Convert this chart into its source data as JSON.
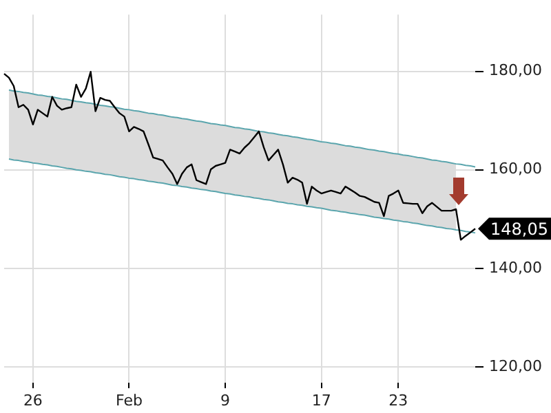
{
  "chart_data": {
    "type": "line",
    "ylim": [
      116.8,
      191.5
    ],
    "categories": [
      null,
      null,
      null,
      null,
      null,
      null,
      "26",
      null,
      null,
      null,
      null,
      null,
      null,
      null,
      null,
      null,
      null,
      null,
      null,
      null,
      null,
      null,
      null,
      null,
      null,
      null,
      "Feb",
      null,
      null,
      null,
      null,
      null,
      null,
      null,
      null,
      null,
      null,
      null,
      null,
      null,
      null,
      null,
      null,
      null,
      null,
      null,
      "9",
      null,
      null,
      null,
      null,
      null,
      null,
      null,
      null,
      null,
      null,
      null,
      null,
      null,
      null,
      null,
      null,
      null,
      null,
      null,
      "17",
      null,
      null,
      null,
      null,
      null,
      null,
      null,
      null,
      null,
      null,
      null,
      null,
      null,
      null,
      null,
      "23",
      null,
      null,
      null,
      null,
      null,
      null,
      null,
      null,
      null,
      null,
      null,
      null,
      null,
      null,
      null,
      null
    ],
    "yticks": [
      {
        "value": 120,
        "label": "120,00"
      },
      {
        "value": 140,
        "label": "140,00"
      },
      {
        "value": 160,
        "label": "160,00"
      },
      {
        "value": 180,
        "label": "180,00"
      }
    ],
    "grid": true,
    "legend": false,
    "marker": "none",
    "line_style": "solid",
    "series": [
      {
        "color": "#5aa5ad",
        "values": [
          null,
          176.2,
          176.0,
          175.9,
          175.7,
          175.6,
          175.4,
          175.2,
          175.1,
          174.9,
          174.8,
          174.6,
          174.4,
          174.3,
          174.1,
          173.9,
          173.8,
          173.6,
          173.5,
          173.3,
          173.1,
          173.0,
          172.8,
          172.7,
          172.5,
          172.3,
          172.2,
          172.0,
          171.9,
          171.7,
          171.5,
          171.4,
          171.2,
          171.1,
          170.9,
          170.7,
          170.6,
          170.4,
          170.3,
          170.1,
          169.9,
          169.8,
          169.6,
          169.4,
          169.3,
          169.1,
          169.0,
          168.8,
          168.6,
          168.5,
          168.3,
          168.2,
          168.0,
          167.8,
          167.7,
          167.5,
          167.4,
          167.2,
          167.0,
          166.9,
          166.7,
          166.6,
          166.4,
          166.2,
          166.1,
          165.9,
          165.7,
          165.6,
          165.4,
          165.3,
          165.1,
          164.9,
          164.8,
          164.6,
          164.5,
          164.3,
          164.1,
          164.0,
          163.8,
          163.7,
          163.5,
          163.3,
          163.2,
          163.0,
          162.9,
          162.7,
          162.5,
          162.4,
          162.2,
          162.0,
          161.9,
          161.7,
          161.6,
          161.4,
          161.2,
          161.1,
          160.9,
          160.8,
          160.6
        ]
      },
      {
        "color": "#5aa5ad",
        "values": [
          null,
          162.2,
          162.0,
          161.9,
          161.7,
          161.6,
          161.4,
          161.3,
          161.1,
          161.0,
          160.8,
          160.7,
          160.5,
          160.3,
          160.2,
          160.0,
          159.9,
          159.7,
          159.6,
          159.4,
          159.3,
          159.1,
          159.0,
          158.8,
          158.6,
          158.5,
          158.3,
          158.2,
          158.0,
          157.9,
          157.7,
          157.6,
          157.4,
          157.3,
          157.1,
          156.9,
          156.8,
          156.6,
          156.5,
          156.3,
          156.2,
          156.0,
          155.9,
          155.7,
          155.6,
          155.4,
          155.2,
          155.1,
          154.9,
          154.8,
          154.6,
          154.5,
          154.3,
          154.2,
          154.0,
          153.9,
          153.7,
          153.5,
          153.4,
          153.2,
          153.1,
          152.9,
          152.8,
          152.6,
          152.5,
          152.3,
          152.2,
          152.0,
          151.8,
          151.7,
          151.5,
          151.4,
          151.2,
          151.1,
          150.9,
          150.8,
          150.6,
          150.4,
          150.3,
          150.1,
          150.0,
          149.8,
          149.7,
          149.5,
          149.4,
          149.2,
          149.1,
          148.9,
          148.7,
          148.6,
          148.4,
          148.3,
          148.1,
          148.0,
          147.8,
          147.7,
          147.5,
          147.4,
          147.2
        ]
      },
      {
        "color": "#000000",
        "values": [
          179.5,
          178.7,
          177.0,
          172.7,
          173.2,
          172.2,
          169.2,
          172.2,
          171.5,
          170.8,
          174.8,
          173.0,
          172.2,
          172.5,
          172.7,
          177.3,
          174.8,
          176.5,
          179.9,
          171.9,
          174.6,
          174.2,
          174.0,
          172.7,
          171.5,
          170.8,
          167.8,
          168.7,
          168.3,
          167.8,
          165.2,
          162.5,
          162.2,
          161.9,
          160.5,
          159.2,
          157.1,
          159.2,
          160.5,
          161.1,
          157.9,
          157.5,
          157.1,
          160.1,
          160.8,
          161.1,
          161.4,
          164.1,
          163.7,
          163.3,
          164.5,
          165.4,
          166.6,
          167.8,
          164.6,
          161.9,
          163.0,
          164.1,
          161.1,
          157.4,
          158.4,
          158.0,
          157.4,
          153.1,
          156.6,
          155.8,
          155.2,
          155.5,
          155.8,
          155.5,
          155.2,
          156.6,
          156.0,
          155.4,
          154.7,
          154.5,
          154.0,
          153.5,
          153.3,
          150.6,
          154.7,
          155.2,
          155.8,
          153.3,
          153.2,
          153.1,
          153.1,
          151.2,
          152.6,
          153.3,
          152.5,
          151.7,
          151.7,
          151.7,
          152.0,
          145.8,
          146.6,
          147.3,
          148.05
        ],
        "lower": [
          null,
          162.2,
          162.0,
          161.9,
          161.7,
          161.6,
          161.4,
          161.3,
          161.1,
          161.0,
          160.8,
          160.7,
          160.5,
          160.3,
          160.2,
          160.0,
          159.9,
          159.7,
          159.6,
          159.4,
          159.3,
          159.1,
          159.0,
          158.8,
          158.6,
          158.5,
          158.3,
          158.2,
          158.0,
          157.9,
          157.7,
          157.6,
          157.4,
          157.3,
          157.1,
          156.9,
          156.8,
          156.6,
          156.5,
          156.3,
          156.2,
          156.0,
          155.9,
          155.7,
          155.6,
          155.4,
          155.2,
          155.1,
          154.9,
          154.8,
          154.6,
          154.5,
          154.3,
          154.2,
          154.0,
          153.9,
          153.7,
          153.5,
          153.4,
          153.2,
          153.1,
          152.9,
          152.8,
          152.6,
          152.5,
          152.3,
          152.2,
          152.0,
          151.8,
          151.7,
          151.5,
          151.4,
          151.2,
          151.1,
          150.9,
          150.8,
          150.6,
          150.4,
          150.3,
          150.1,
          150.0,
          149.8,
          149.7,
          149.5,
          149.4,
          149.2,
          149.1,
          148.9,
          148.7,
          148.6,
          148.4,
          148.3,
          148.1,
          148.0,
          147.8,
          null,
          null,
          null,
          null
        ],
        "upper": [
          null,
          176.2,
          176.0,
          175.9,
          175.7,
          175.6,
          175.4,
          175.2,
          175.1,
          174.9,
          174.8,
          174.6,
          174.4,
          174.3,
          174.1,
          173.9,
          173.8,
          173.6,
          173.5,
          173.3,
          173.1,
          173.0,
          172.8,
          172.7,
          172.5,
          172.3,
          172.2,
          172.0,
          171.9,
          171.7,
          171.5,
          171.4,
          171.2,
          171.1,
          170.9,
          170.7,
          170.6,
          170.4,
          170.3,
          170.1,
          169.9,
          169.8,
          169.6,
          169.4,
          169.3,
          169.1,
          169.0,
          168.8,
          168.6,
          168.5,
          168.3,
          168.2,
          168.0,
          167.8,
          167.7,
          167.5,
          167.4,
          167.2,
          167.0,
          166.9,
          166.7,
          166.6,
          166.4,
          166.2,
          166.1,
          165.9,
          165.7,
          165.6,
          165.4,
          165.3,
          165.1,
          164.9,
          164.8,
          164.6,
          164.5,
          164.3,
          164.1,
          164.0,
          163.8,
          163.7,
          163.5,
          163.3,
          163.2,
          163.0,
          162.9,
          162.7,
          162.5,
          162.4,
          162.2,
          162.0,
          161.9,
          161.7,
          161.6,
          161.4,
          161.2,
          null,
          null,
          null,
          null
        ]
      }
    ],
    "annotations": [
      "148,05"
    ]
  }
}
